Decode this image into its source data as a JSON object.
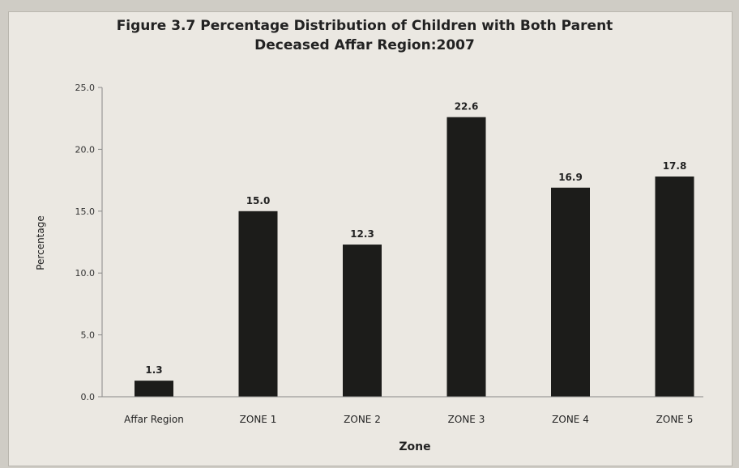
{
  "chart_data": {
    "type": "bar",
    "title_line1": "Figure 3.7 Percentage Distribution of Children with Both Parent",
    "title_line2": "Deceased Affar Region:2007",
    "xlabel": "Zone",
    "ylabel": "Percentage",
    "categories": [
      "Affar Region",
      "ZONE 1",
      "ZONE 2",
      "ZONE 3",
      "ZONE 4",
      "ZONE 5"
    ],
    "values": [
      1.3,
      15.0,
      12.3,
      22.6,
      16.9,
      17.8
    ],
    "data_labels": [
      "1.3",
      "15.0",
      "12.3",
      "22.6",
      "16.9",
      "17.8"
    ],
    "ylim": [
      0,
      25
    ],
    "yticks": [
      "0.0",
      "5.0",
      "10.0",
      "15.0",
      "20.0",
      "25.0"
    ],
    "grid": false,
    "bar_color": "#1c1c1a"
  }
}
